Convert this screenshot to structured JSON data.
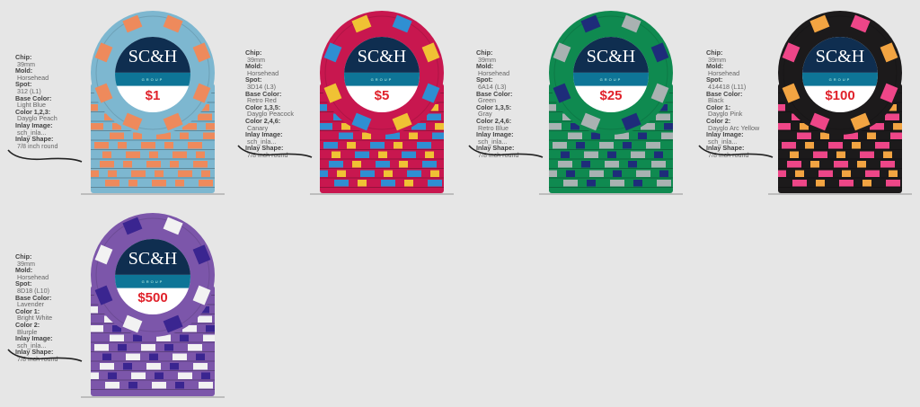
{
  "chips": [
    {
      "value": "$1",
      "specs": [
        [
          "Chip:",
          "39mm"
        ],
        [
          "Mold:",
          "Horsehead"
        ],
        [
          "Spot:",
          "312 (L1)"
        ],
        [
          "Base Color:",
          "Light Blue"
        ],
        [
          "Color 1,2,3:",
          "Dayglo Peach"
        ],
        [
          "Inlay Image:",
          "sch_inla..."
        ],
        [
          "Inlay Shape:",
          "7/8 inch round"
        ]
      ],
      "colors": {
        "base": "#7db7d0",
        "spot1": "#ee8a5c",
        "spot2": "#ee8a5c"
      }
    },
    {
      "value": "$5",
      "specs": [
        [
          "Chip:",
          "39mm"
        ],
        [
          "Mold:",
          "Horsehead"
        ],
        [
          "Spot:",
          "3D14 (L3)"
        ],
        [
          "Base Color:",
          "Retro Red"
        ],
        [
          "Color 1,3,5:",
          "Dayglo Peacock"
        ],
        [
          "Color 2,4,6:",
          "Canary"
        ],
        [
          "Inlay Image:",
          "sch_inla..."
        ],
        [
          "Inlay Shape:",
          "7/8 inch round"
        ]
      ],
      "colors": {
        "base": "#c8174f",
        "spot1": "#2f8fd2",
        "spot2": "#f0c234"
      }
    },
    {
      "value": "$25",
      "specs": [
        [
          "Chip:",
          "39mm"
        ],
        [
          "Mold:",
          "Horsehead"
        ],
        [
          "Spot:",
          "6A14 (L3)"
        ],
        [
          "Base Color:",
          "Green"
        ],
        [
          "Color 1,3,5:",
          "Gray"
        ],
        [
          "Color 2,4,6:",
          "Retro Blue"
        ],
        [
          "Inlay Image:",
          "sch_inla..."
        ],
        [
          "Inlay Shape:",
          "7/8 inch round"
        ]
      ],
      "colors": {
        "base": "#0f8a50",
        "spot1": "#a9b2b2",
        "spot2": "#1e2c7a"
      }
    },
    {
      "value": "$100",
      "specs": [
        [
          "Chip:",
          "39mm"
        ],
        [
          "Mold:",
          "Horsehead"
        ],
        [
          "Spot:",
          "414418 (L11)"
        ],
        [
          "Base Color:",
          "Black"
        ],
        [
          "Color 1:",
          "Dayglo Pink"
        ],
        [
          "Color 2:",
          "Dayglo Arc Yellow"
        ],
        [
          "Inlay Image:",
          "sch_inla..."
        ],
        [
          "Inlay Shape:",
          "7/8 inch round"
        ]
      ],
      "colors": {
        "base": "#1c1a1b",
        "spot1": "#ee4688",
        "spot2": "#f2a442"
      }
    },
    {
      "value": "$500",
      "specs": [
        [
          "Chip:",
          "39mm"
        ],
        [
          "Mold:",
          "Horsehead"
        ],
        [
          "Spot:",
          "8D18 (L10)"
        ],
        [
          "Base Color:",
          "Lavender"
        ],
        [
          "Color 1:",
          "Bright White"
        ],
        [
          "Color 2:",
          "Blurple"
        ],
        [
          "Inlay Image:",
          "sch_inla..."
        ],
        [
          "Inlay Shape:",
          "7/8 inch round"
        ]
      ],
      "colors": {
        "base": "#7c56aa",
        "spot1": "#f2f2f2",
        "spot2": "#3a2590"
      }
    }
  ],
  "inlay": {
    "logo": "SC&H",
    "sub": "GROUP",
    "navy": "#0f2e50",
    "teal": "#0e7597",
    "value_color": "#e0222b"
  }
}
